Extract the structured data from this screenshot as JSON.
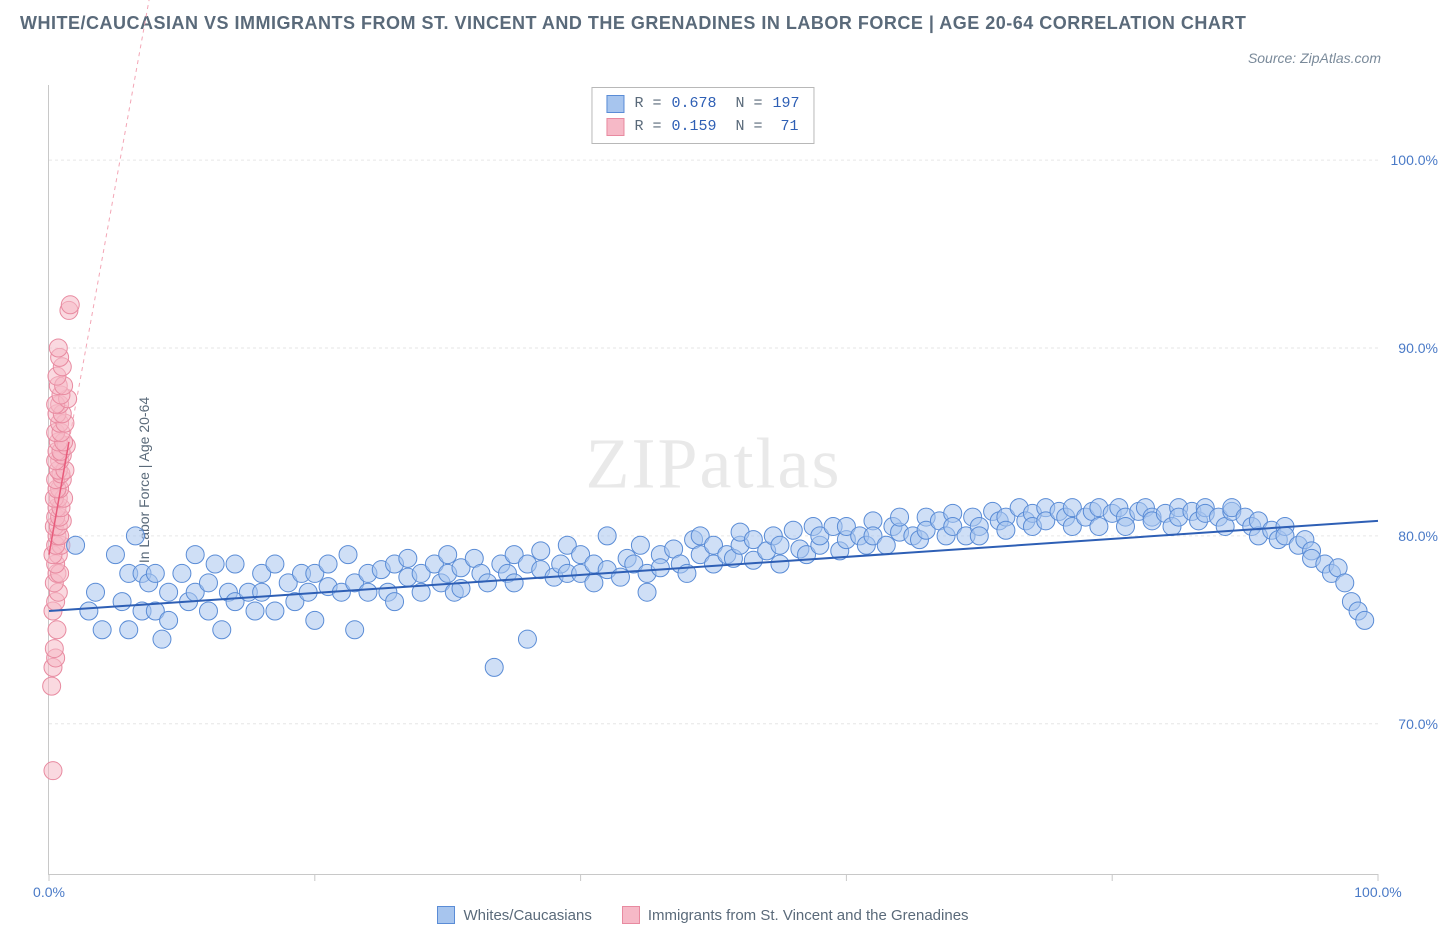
{
  "chart": {
    "type": "scatter",
    "title": "WHITE/CAUCASIAN VS IMMIGRANTS FROM ST. VINCENT AND THE GRENADINES IN LABOR FORCE | AGE 20-64 CORRELATION CHART",
    "source": "Source: ZipAtlas.com",
    "watermark": "ZIPatlas",
    "ylabel": "In Labor Force | Age 20-64",
    "background_color": "#ffffff",
    "grid_color": "#e6e6e6",
    "axis_color": "#c8c8c8",
    "tick_label_color": "#4a7ac7",
    "text_color": "#5a6a7a",
    "title_fontsize": 18,
    "label_fontsize": 14,
    "xlim": [
      0,
      100
    ],
    "ylim": [
      62,
      104
    ],
    "ytick_step": 10,
    "xtick_step": 20,
    "x_axis_end_labels": {
      "min": "0.0%",
      "max": "100.0%"
    },
    "ytick_labels": [
      "70.0%",
      "80.0%",
      "90.0%",
      "100.0%"
    ],
    "ytick_values": [
      70,
      80,
      90,
      100
    ],
    "xtick_values": [
      0,
      20,
      40,
      60,
      80,
      100
    ],
    "series": {
      "blue": {
        "label": "Whites/Caucasians",
        "fill_color": "#a7c5ee",
        "stroke_color": "#5a8cd6",
        "marker_radius": 9,
        "fill_opacity": 0.55,
        "trend": {
          "x1": 0,
          "y1": 76,
          "x2": 100,
          "y2": 80.8,
          "stroke": "#2e5fb5",
          "width": 2,
          "dash": "none"
        },
        "R": "0.678",
        "N": "197",
        "points": [
          [
            2,
            79.5
          ],
          [
            3,
            76
          ],
          [
            3.5,
            77
          ],
          [
            4,
            75
          ],
          [
            5,
            79
          ],
          [
            5.5,
            76.5
          ],
          [
            6,
            78
          ],
          [
            6,
            75
          ],
          [
            6.5,
            80
          ],
          [
            7,
            76
          ],
          [
            7,
            78
          ],
          [
            7.5,
            77.5
          ],
          [
            8,
            76
          ],
          [
            8,
            78
          ],
          [
            8.5,
            74.5
          ],
          [
            9,
            77
          ],
          [
            9,
            75.5
          ],
          [
            10,
            78
          ],
          [
            10.5,
            76.5
          ],
          [
            11,
            77
          ],
          [
            11,
            79
          ],
          [
            12,
            76
          ],
          [
            12,
            77.5
          ],
          [
            12.5,
            78.5
          ],
          [
            13,
            75
          ],
          [
            13.5,
            77
          ],
          [
            14,
            76.5
          ],
          [
            14,
            78.5
          ],
          [
            15,
            77
          ],
          [
            15.5,
            76
          ],
          [
            16,
            78
          ],
          [
            16,
            77
          ],
          [
            17,
            76
          ],
          [
            17,
            78.5
          ],
          [
            18,
            77.5
          ],
          [
            18.5,
            76.5
          ],
          [
            19,
            78
          ],
          [
            19.5,
            77
          ],
          [
            20,
            75.5
          ],
          [
            20,
            78
          ],
          [
            21,
            77.3
          ],
          [
            21,
            78.5
          ],
          [
            22,
            77
          ],
          [
            22.5,
            79
          ],
          [
            23,
            77.5
          ],
          [
            23,
            75
          ],
          [
            24,
            78
          ],
          [
            24,
            77
          ],
          [
            25,
            78.2
          ],
          [
            25.5,
            77
          ],
          [
            26,
            78.5
          ],
          [
            26,
            76.5
          ],
          [
            27,
            77.8
          ],
          [
            27,
            78.8
          ],
          [
            28,
            77
          ],
          [
            28,
            78
          ],
          [
            29,
            78.5
          ],
          [
            29.5,
            77.5
          ],
          [
            30,
            78
          ],
          [
            30,
            79
          ],
          [
            30.5,
            77
          ],
          [
            31,
            78.3
          ],
          [
            31,
            77.2
          ],
          [
            32,
            78.8
          ],
          [
            32.5,
            78
          ],
          [
            33,
            77.5
          ],
          [
            33.5,
            73
          ],
          [
            34,
            78.5
          ],
          [
            34.5,
            78
          ],
          [
            35,
            79
          ],
          [
            35,
            77.5
          ],
          [
            36,
            78.5
          ],
          [
            36,
            74.5
          ],
          [
            37,
            78.2
          ],
          [
            37,
            79.2
          ],
          [
            38,
            77.8
          ],
          [
            38.5,
            78.5
          ],
          [
            39,
            78
          ],
          [
            39,
            79.5
          ],
          [
            40,
            78
          ],
          [
            40,
            79
          ],
          [
            41,
            77.5
          ],
          [
            41,
            78.5
          ],
          [
            42,
            78.2
          ],
          [
            42,
            80
          ],
          [
            43,
            77.8
          ],
          [
            43.5,
            78.8
          ],
          [
            44,
            78.5
          ],
          [
            44.5,
            79.5
          ],
          [
            45,
            78
          ],
          [
            45,
            77
          ],
          [
            46,
            79
          ],
          [
            46,
            78.3
          ],
          [
            47,
            79.3
          ],
          [
            47.5,
            78.5
          ],
          [
            48,
            78
          ],
          [
            48.5,
            79.8
          ],
          [
            49,
            79
          ],
          [
            49,
            80
          ],
          [
            50,
            78.5
          ],
          [
            50,
            79.5
          ],
          [
            51,
            79
          ],
          [
            51.5,
            78.8
          ],
          [
            52,
            79.5
          ],
          [
            52,
            80.2
          ],
          [
            53,
            78.7
          ],
          [
            53,
            79.8
          ],
          [
            54,
            79.2
          ],
          [
            54.5,
            80
          ],
          [
            55,
            79.5
          ],
          [
            55,
            78.5
          ],
          [
            56,
            80.3
          ],
          [
            56.5,
            79.3
          ],
          [
            57,
            79
          ],
          [
            57.5,
            80.5
          ],
          [
            58,
            79.5
          ],
          [
            58,
            80
          ],
          [
            59,
            80.5
          ],
          [
            59.5,
            79.2
          ],
          [
            60,
            79.8
          ],
          [
            60,
            80.5
          ],
          [
            61,
            80
          ],
          [
            61.5,
            79.5
          ],
          [
            62,
            80.8
          ],
          [
            62,
            80
          ],
          [
            63,
            79.5
          ],
          [
            63.5,
            80.5
          ],
          [
            64,
            80.2
          ],
          [
            64,
            81
          ],
          [
            65,
            80
          ],
          [
            65.5,
            79.8
          ],
          [
            66,
            81
          ],
          [
            66,
            80.3
          ],
          [
            67,
            80.8
          ],
          [
            67.5,
            80
          ],
          [
            68,
            81.2
          ],
          [
            68,
            80.5
          ],
          [
            69,
            80
          ],
          [
            69.5,
            81
          ],
          [
            70,
            80.5
          ],
          [
            70,
            80
          ],
          [
            71,
            81.3
          ],
          [
            71.5,
            80.8
          ],
          [
            72,
            81
          ],
          [
            72,
            80.3
          ],
          [
            73,
            81.5
          ],
          [
            73.5,
            80.8
          ],
          [
            74,
            81.2
          ],
          [
            74,
            80.5
          ],
          [
            75,
            81.5
          ],
          [
            75,
            80.8
          ],
          [
            76,
            81.3
          ],
          [
            76.5,
            81
          ],
          [
            77,
            80.5
          ],
          [
            77,
            81.5
          ],
          [
            78,
            81
          ],
          [
            78.5,
            81.3
          ],
          [
            79,
            80.5
          ],
          [
            79,
            81.5
          ],
          [
            80,
            81.2
          ],
          [
            80.5,
            81.5
          ],
          [
            81,
            81
          ],
          [
            81,
            80.5
          ],
          [
            82,
            81.3
          ],
          [
            82.5,
            81.5
          ],
          [
            83,
            81
          ],
          [
            83,
            80.8
          ],
          [
            84,
            81.2
          ],
          [
            84.5,
            80.5
          ],
          [
            85,
            81.5
          ],
          [
            85,
            81
          ],
          [
            86,
            81.3
          ],
          [
            86.5,
            80.8
          ],
          [
            87,
            81.5
          ],
          [
            87,
            81.2
          ],
          [
            88,
            81
          ],
          [
            88.5,
            80.5
          ],
          [
            89,
            81.3
          ],
          [
            89,
            81.5
          ],
          [
            90,
            81
          ],
          [
            90.5,
            80.5
          ],
          [
            91,
            80
          ],
          [
            91,
            80.8
          ],
          [
            92,
            80.3
          ],
          [
            92.5,
            79.8
          ],
          [
            93,
            80.5
          ],
          [
            93,
            80
          ],
          [
            94,
            79.5
          ],
          [
            94.5,
            79.8
          ],
          [
            95,
            79.2
          ],
          [
            95,
            78.8
          ],
          [
            96,
            78.5
          ],
          [
            96.5,
            78
          ],
          [
            97,
            78.3
          ],
          [
            97.5,
            77.5
          ],
          [
            98,
            76.5
          ],
          [
            98.5,
            76
          ],
          [
            99,
            75.5
          ]
        ]
      },
      "pink": {
        "label": "Immigrants from St. Vincent and the Grenadines",
        "fill_color": "#f6b9c7",
        "stroke_color": "#e88aa0",
        "marker_radius": 9,
        "fill_opacity": 0.55,
        "trend": {
          "x1": 0,
          "y1": 79,
          "x2": 1.5,
          "y2": 85,
          "stroke": "#e85a7a",
          "width": 1.5,
          "dash": "none"
        },
        "trend_ext": {
          "x1": 1.5,
          "y1": 85,
          "x2": 22,
          "y2": 165,
          "stroke": "#f3a5b5",
          "width": 1,
          "dash": "4,4"
        },
        "R": "0.159",
        "N": "71",
        "points": [
          [
            0.3,
            67.5
          ],
          [
            0.2,
            72
          ],
          [
            0.3,
            73
          ],
          [
            0.5,
            73.5
          ],
          [
            0.4,
            74
          ],
          [
            0.6,
            75
          ],
          [
            0.3,
            76
          ],
          [
            0.5,
            76.5
          ],
          [
            0.7,
            77
          ],
          [
            0.4,
            77.5
          ],
          [
            0.6,
            78
          ],
          [
            0.8,
            78
          ],
          [
            0.5,
            78.5
          ],
          [
            0.7,
            79
          ],
          [
            0.3,
            79
          ],
          [
            0.9,
            79.5
          ],
          [
            0.5,
            79.5
          ],
          [
            0.6,
            80
          ],
          [
            0.8,
            80
          ],
          [
            0.4,
            80.5
          ],
          [
            0.7,
            80.5
          ],
          [
            1.0,
            80.8
          ],
          [
            0.5,
            81
          ],
          [
            0.8,
            81
          ],
          [
            0.6,
            81.5
          ],
          [
            0.9,
            81.5
          ],
          [
            0.7,
            82
          ],
          [
            0.4,
            82
          ],
          [
            1.1,
            82
          ],
          [
            0.8,
            82.5
          ],
          [
            0.6,
            82.5
          ],
          [
            1.0,
            83
          ],
          [
            0.5,
            83
          ],
          [
            0.9,
            83.3
          ],
          [
            0.7,
            83.5
          ],
          [
            1.2,
            83.5
          ],
          [
            0.8,
            84
          ],
          [
            0.5,
            84
          ],
          [
            1.0,
            84.3
          ],
          [
            0.6,
            84.5
          ],
          [
            0.9,
            84.5
          ],
          [
            1.3,
            84.8
          ],
          [
            0.7,
            85
          ],
          [
            1.1,
            85
          ],
          [
            0.5,
            85.5
          ],
          [
            0.9,
            85.5
          ],
          [
            0.8,
            86
          ],
          [
            1.2,
            86
          ],
          [
            0.6,
            86.5
          ],
          [
            1.0,
            86.5
          ],
          [
            0.8,
            87
          ],
          [
            0.5,
            87
          ],
          [
            1.4,
            87.3
          ],
          [
            0.9,
            87.5
          ],
          [
            0.7,
            88
          ],
          [
            1.1,
            88
          ],
          [
            0.6,
            88.5
          ],
          [
            1.0,
            89
          ],
          [
            0.8,
            89.5
          ],
          [
            1.5,
            92
          ],
          [
            1.6,
            92.3
          ],
          [
            0.7,
            90
          ]
        ]
      }
    }
  }
}
